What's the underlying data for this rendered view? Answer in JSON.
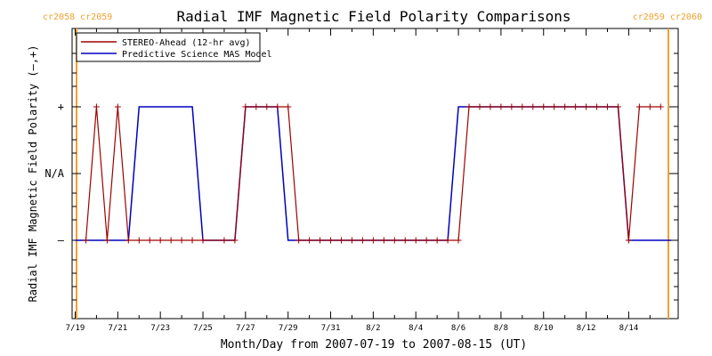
{
  "chart_data": {
    "type": "line",
    "title": "Radial IMF Magnetic Field Polarity Comparisons",
    "xlabel": "Month/Day from 2007-07-19 to 2007-08-15 (UT)",
    "ylabel": "Radial IMF Magnetic Field Polarity (–,+)",
    "x_tick_labels": [
      "7/19",
      "7/21",
      "7/23",
      "7/25",
      "7/27",
      "7/29",
      "7/31",
      "8/2",
      "8/4",
      "8/6",
      "8/8",
      "8/10",
      "8/12",
      "8/14"
    ],
    "y_tick_labels": [
      "–",
      "N/A",
      "+"
    ],
    "y_levels": {
      "negative": -1,
      "na": 0,
      "positive": 1
    },
    "ylim": [
      -2,
      2
    ],
    "grid": false,
    "legend_position": "top-left",
    "carrington_labels": {
      "left": "cr2058 cr2059",
      "right": "cr2059 cr2060"
    },
    "colors": {
      "stereo": "#a00000",
      "model": "#0000c0",
      "carrington": "#f0a030",
      "axes": "#000000"
    },
    "series": [
      {
        "name": "STEREO-Ahead (12-hr avg)",
        "marker": "+",
        "x": [
          "2007-07-19 12:00",
          "2007-07-20 00:00",
          "2007-07-20 12:00",
          "2007-07-21 00:00",
          "2007-07-21 12:00",
          "2007-07-22 00:00",
          "2007-07-22 12:00",
          "2007-07-23 00:00",
          "2007-07-23 12:00",
          "2007-07-24 00:00",
          "2007-07-24 12:00",
          "2007-07-25 00:00",
          "2007-07-26 00:00",
          "2007-07-26 12:00",
          "2007-07-27 00:00",
          "2007-07-27 12:00",
          "2007-07-28 00:00",
          "2007-07-28 12:00",
          "2007-07-29 00:00",
          "2007-07-29 12:00",
          "2007-07-30 00:00",
          "2007-07-30 12:00",
          "2007-07-31 00:00",
          "2007-07-31 12:00",
          "2007-08-01 00:00",
          "2007-08-01 12:00",
          "2007-08-02 00:00",
          "2007-08-02 12:00",
          "2007-08-03 00:00",
          "2007-08-03 12:00",
          "2007-08-04 00:00",
          "2007-08-04 12:00",
          "2007-08-05 00:00",
          "2007-08-05 12:00",
          "2007-08-06 00:00",
          "2007-08-06 12:00",
          "2007-08-07 00:00",
          "2007-08-07 12:00",
          "2007-08-08 00:00",
          "2007-08-08 12:00",
          "2007-08-09 00:00",
          "2007-08-09 12:00",
          "2007-08-10 00:00",
          "2007-08-10 12:00",
          "2007-08-11 00:00",
          "2007-08-11 12:00",
          "2007-08-12 00:00",
          "2007-08-12 12:00",
          "2007-08-13 00:00",
          "2007-08-13 12:00",
          "2007-08-14 00:00",
          "2007-08-14 12:00",
          "2007-08-15 00:00",
          "2007-08-15 12:00"
        ],
        "y": [
          -1,
          1,
          -1,
          1,
          -1,
          -1,
          -1,
          -1,
          -1,
          -1,
          -1,
          -1,
          -1,
          -1,
          1,
          1,
          1,
          1,
          1,
          -1,
          -1,
          -1,
          -1,
          -1,
          -1,
          -1,
          -1,
          -1,
          -1,
          -1,
          -1,
          -1,
          -1,
          -1,
          -1,
          1,
          1,
          1,
          1,
          1,
          1,
          1,
          1,
          1,
          1,
          1,
          1,
          1,
          1,
          1,
          -1,
          1,
          1,
          1
        ]
      },
      {
        "name": "Predictive Science MAS Model",
        "marker": "none",
        "x": [
          "2007-07-19 00:00",
          "2007-07-21 12:00",
          "2007-07-22 00:00",
          "2007-07-24 12:00",
          "2007-07-25 00:00",
          "2007-07-26 12:00",
          "2007-07-27 00:00",
          "2007-07-28 12:00",
          "2007-07-29 00:00",
          "2007-08-05 12:00",
          "2007-08-06 00:00",
          "2007-08-13 12:00",
          "2007-08-14 00:00",
          "2007-08-16 00:00"
        ],
        "y": [
          -1,
          -1,
          1,
          1,
          -1,
          -1,
          1,
          1,
          -1,
          -1,
          1,
          1,
          -1,
          -1
        ]
      }
    ]
  }
}
